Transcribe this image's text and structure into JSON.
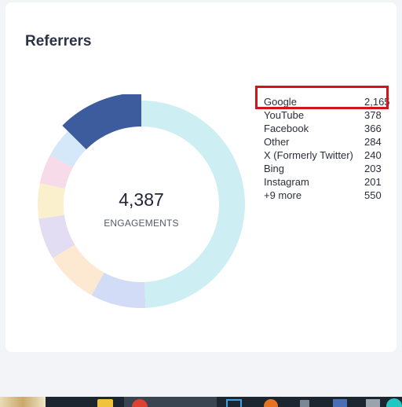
{
  "widget": {
    "title": "Referrers",
    "total": "4,387",
    "total_label": "ENGAGEMENTS"
  },
  "referrers": [
    {
      "name": "Google",
      "value": "2,165",
      "color": "#cdeef2"
    },
    {
      "name": "YouTube",
      "value": "378",
      "color": "#d3dcf6"
    },
    {
      "name": "Facebook",
      "value": "366",
      "color": "#fde8d2"
    },
    {
      "name": "Other",
      "value": "284",
      "color": "#e3ddf4"
    },
    {
      "name": "X (Formerly Twitter)",
      "value": "240",
      "color": "#faf0cd"
    },
    {
      "name": "Bing",
      "value": "203",
      "color": "#f7dbe8"
    },
    {
      "name": "Instagram",
      "value": "201",
      "color": "#d5e8fa"
    },
    {
      "name": "+9 more",
      "value": "550",
      "color": "#3d5c9d"
    }
  ],
  "taskbar_icons": [
    "start-thumbnail-icon",
    "folder-icon",
    "chrome-icon",
    "browser-icon",
    "app-icon",
    "edge-icon"
  ]
}
